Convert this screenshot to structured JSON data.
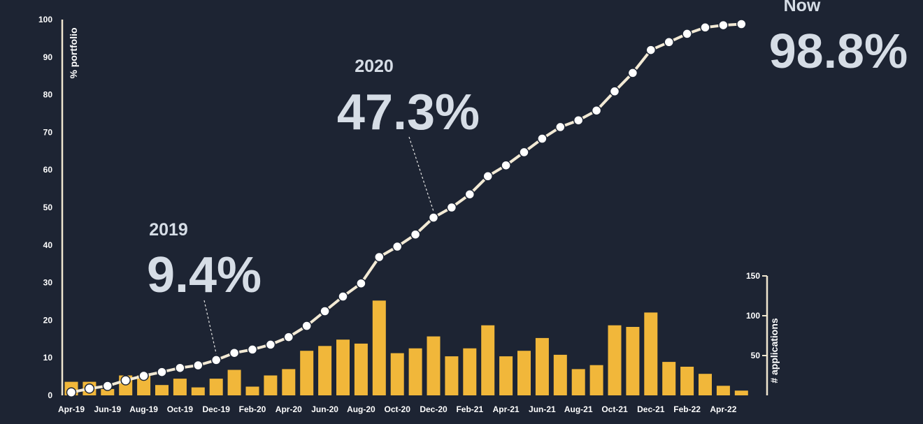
{
  "chart_data": {
    "type": "bar+line",
    "x": [
      "Apr-19",
      "May-19",
      "Jun-19",
      "Jul-19",
      "Aug-19",
      "Sep-19",
      "Oct-19",
      "Nov-19",
      "Dec-19",
      "Jan-20",
      "Feb-20",
      "Mar-20",
      "Apr-20",
      "May-20",
      "Jun-20",
      "Jul-20",
      "Aug-20",
      "Sep-20",
      "Oct-20",
      "Nov-20",
      "Dec-20",
      "Jan-21",
      "Feb-21",
      "Mar-21",
      "Apr-21",
      "May-21",
      "Jun-21",
      "Jul-21",
      "Aug-21",
      "Sep-21",
      "Oct-21",
      "Nov-21",
      "Dec-21",
      "Jan-22",
      "Feb-22",
      "Mar-22",
      "Apr-22",
      "May-22"
    ],
    "x_tick_labels": [
      "Apr-19",
      "Jun-19",
      "Aug-19",
      "Oct-19",
      "Dec-19",
      "Feb-20",
      "Apr-20",
      "Jun-20",
      "Aug-20",
      "Oct-20",
      "Dec-20",
      "Feb-21",
      "Apr-21",
      "Jun-21",
      "Aug-21",
      "Oct-21",
      "Dec-21",
      "Feb-22",
      "Apr-22"
    ],
    "series": [
      {
        "chart": "line",
        "axis": "left",
        "color": "#f3ead5",
        "marker_color": "#ffffff",
        "values": [
          0.8,
          1.8,
          2.5,
          4.0,
          5.2,
          6.2,
          7.3,
          8.0,
          9.4,
          11.3,
          12.2,
          13.5,
          15.5,
          18.5,
          22.4,
          26.3,
          29.8,
          36.8,
          39.6,
          42.8,
          47.3,
          50.0,
          53.5,
          58.3,
          61.2,
          64.7,
          68.3,
          71.4,
          73.2,
          75.8,
          80.9,
          85.8,
          91.9,
          94.0,
          96.2,
          97.9,
          98.5,
          98.8
        ]
      },
      {
        "chart": "bar",
        "axis": "right",
        "color": "#f1b73a",
        "values": [
          17,
          17,
          8,
          25,
          25,
          13,
          21,
          10,
          21,
          32,
          11,
          25,
          33,
          56,
          62,
          70,
          65,
          119,
          53,
          59,
          74,
          49,
          59,
          88,
          49,
          56,
          72,
          51,
          33,
          38,
          88,
          86,
          104,
          42,
          36,
          27,
          12,
          6
        ]
      }
    ],
    "y_left": {
      "label": "% portfolio",
      "ylim": [
        0,
        100
      ],
      "ticks": [
        "0",
        "10",
        "20",
        "30",
        "40",
        "50",
        "60",
        "70",
        "80",
        "90",
        "100"
      ]
    },
    "y_right": {
      "label": "# applications",
      "ylim": [
        0,
        150
      ],
      "ticks": [
        "50",
        "100",
        "150"
      ]
    },
    "annotations": [
      {
        "year": "2019",
        "value": "9.4%",
        "x": "Dec-19"
      },
      {
        "year": "2020",
        "value": "47.3%",
        "x": "Dec-20"
      },
      {
        "year": "Now",
        "value": "98.8%",
        "x": "May-22"
      }
    ],
    "grid": false,
    "legend": "none"
  }
}
